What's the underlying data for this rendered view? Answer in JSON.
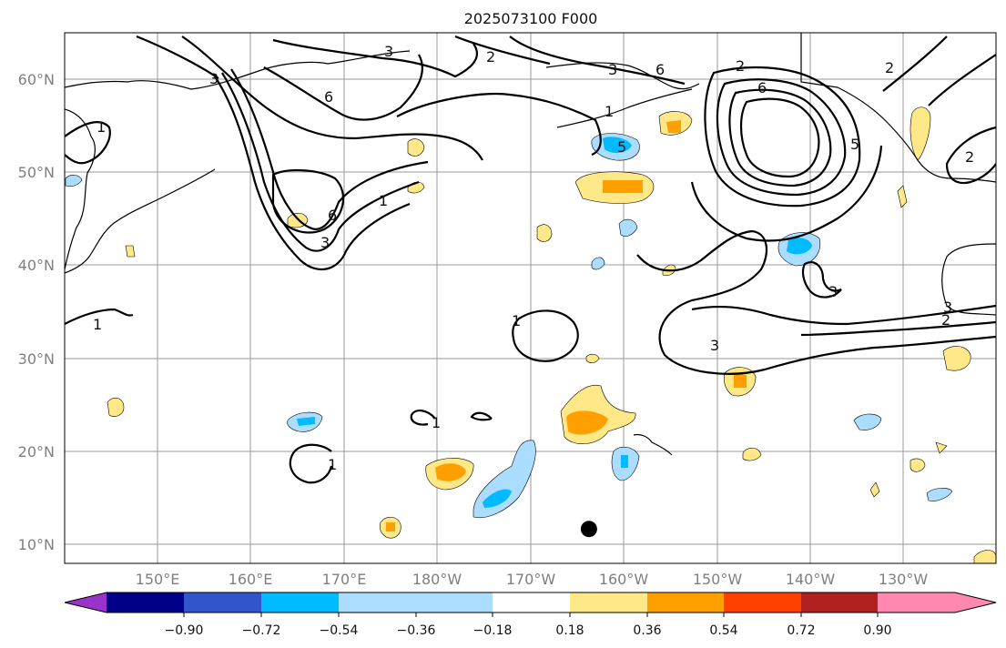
{
  "title": "2025073100 F000",
  "map": {
    "lon_labels": [
      "150°E",
      "160°E",
      "170°E",
      "180°W",
      "170°W",
      "160°W",
      "150°W",
      "140°W",
      "130°W"
    ],
    "lat_labels": [
      "60°N",
      "50°N",
      "40°N",
      "30°N",
      "20°N",
      "10°N"
    ],
    "extent": {
      "lon_min": 140,
      "lon_max": 240,
      "lat_min": 8,
      "lat_max": 65
    },
    "contour_labels": [
      "1",
      "1",
      "1",
      "1",
      "1",
      "1",
      "1",
      "2",
      "2",
      "2",
      "2",
      "2",
      "3",
      "3",
      "3",
      "3",
      "3",
      "3",
      "3",
      "5",
      "5",
      "6",
      "6",
      "6",
      "6"
    ],
    "marker": {
      "lon": 196.3,
      "lat": 11.7,
      "color": "#000000"
    },
    "colors": {
      "background": "#ffffff",
      "grid": "#9a9a9a",
      "contours": "#000000",
      "coastline": "#000000"
    }
  },
  "colorbar": {
    "ticks": [
      "−0.90",
      "−0.72",
      "−0.54",
      "−0.36",
      "−0.18",
      "0.18",
      "0.36",
      "0.54",
      "0.72",
      "0.90"
    ],
    "colors": [
      "#9933cc",
      "#000088",
      "#3355cc",
      "#00bbff",
      "#aaddff",
      "#ffffff",
      "#ffe888",
      "#ffa000",
      "#ff4000",
      "#b02020",
      "#ff88b0"
    ]
  }
}
